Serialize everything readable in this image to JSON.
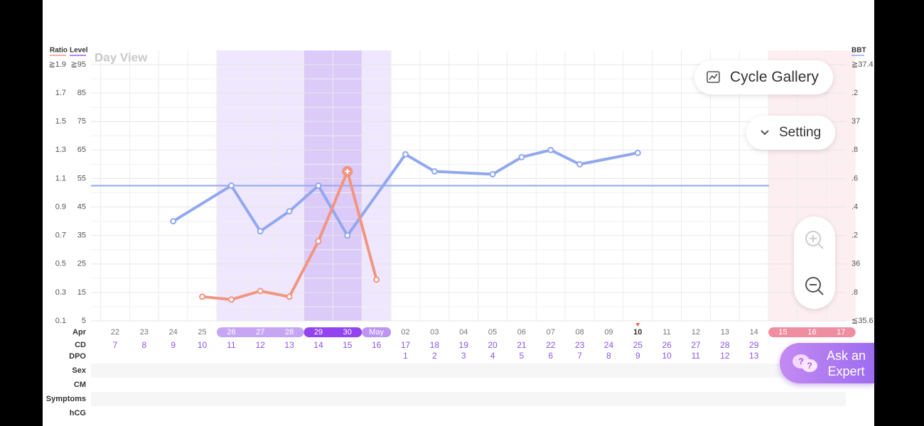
{
  "chart_data": {
    "type": "line",
    "title": "Day View",
    "y_label": "Ratio",
    "y3_label": "Level",
    "y2_label": "BBT",
    "month_label": "Apr",
    "cd_label": "CD",
    "dpo_label": "DPO",
    "categories": [
      "22",
      "23",
      "24",
      "25",
      "26",
      "27",
      "28",
      "29",
      "30",
      "May",
      "02",
      "03",
      "04",
      "05",
      "06",
      "07",
      "08",
      "09",
      "10",
      "11",
      "12",
      "13",
      "14",
      "15",
      "16",
      "17"
    ],
    "cd": [
      7,
      8,
      9,
      10,
      11,
      12,
      13,
      14,
      15,
      16,
      17,
      18,
      19,
      20,
      21,
      22,
      23,
      24,
      25,
      26,
      27,
      28,
      29,
      null,
      null,
      null
    ],
    "dpo": [
      null,
      null,
      null,
      null,
      null,
      null,
      null,
      null,
      null,
      null,
      1,
      2,
      3,
      4,
      5,
      6,
      7,
      8,
      9,
      10,
      11,
      12,
      13,
      null,
      null,
      null
    ],
    "fertile_days": [
      "26",
      "27",
      "28",
      "May"
    ],
    "peak_days": [
      "29",
      "30"
    ],
    "period_days": [
      "15",
      "16",
      "17"
    ],
    "today": "10",
    "peak_marker_day": "30",
    "series": [
      {
        "name": "BBT",
        "color": "#91a8ef",
        "axis": "y2",
        "x": [
          "24",
          "26",
          "27",
          "28",
          "29",
          "30",
          "02",
          "03",
          "05",
          "06",
          "07",
          "08",
          "10"
        ],
        "values": [
          36.3,
          36.55,
          36.23,
          36.37,
          36.55,
          36.2,
          36.77,
          36.65,
          36.63,
          36.75,
          36.8,
          36.7,
          36.78
        ]
      },
      {
        "name": "Ratio",
        "color": "#f19580",
        "x": [
          "25",
          "26",
          "27",
          "28",
          "29",
          "30",
          "May"
        ],
        "values": [
          0.27,
          0.25,
          0.31,
          0.27,
          0.66,
          1.15,
          0.39
        ]
      }
    ],
    "coverline": 36.55,
    "ylim": [
      0.1,
      1.9
    ],
    "yticks": [
      {
        "value": 1.9,
        "label": "≧1.9"
      },
      1.7,
      1.5,
      1.3,
      1.1,
      0.9,
      0.7,
      0.5,
      0.3,
      0.1
    ],
    "y3lim": [
      5,
      95
    ],
    "y3ticks": [
      {
        "value": 95,
        "label": "≧95"
      },
      85,
      75,
      65,
      55,
      45,
      35,
      25,
      15,
      5
    ],
    "y2lim": [
      35.6,
      37.4
    ],
    "y2ticks": [
      {
        "value": 37.4,
        "label": "≧37.4"
      },
      {
        "value": 37.2,
        "label": ".2"
      },
      37,
      {
        "value": 36.8,
        "label": ".8"
      },
      {
        "value": 36.6,
        "label": ".6"
      },
      {
        "value": 36.4,
        "label": ".4"
      },
      {
        "value": 36.2,
        "label": ".2"
      },
      36,
      {
        "value": 35.8,
        "label": ".8"
      },
      {
        "value": 35.6,
        "label": "≦35.6"
      }
    ],
    "grid": true
  },
  "record_rows": [
    "Sex",
    "CM",
    "Symptoms",
    "hCG"
  ],
  "buttons": {
    "cycle_gallery": "Cycle Gallery",
    "setting": "Setting",
    "ask_expert": [
      "Ask an",
      "Expert"
    ]
  }
}
